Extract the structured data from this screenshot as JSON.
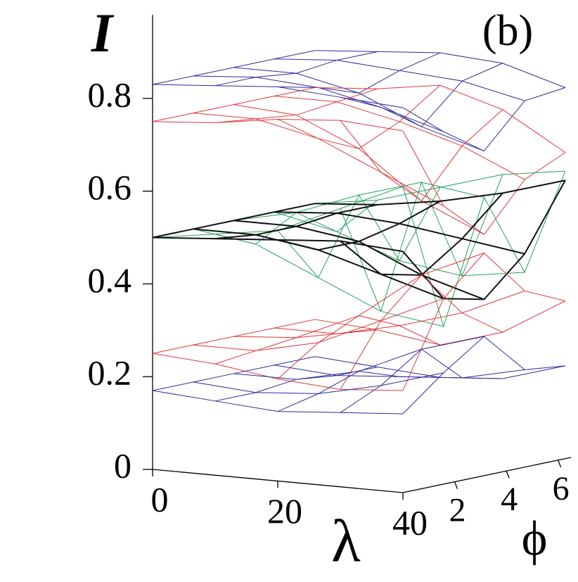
{
  "chart_data": {
    "type": "surface3d",
    "annotation": "(b)",
    "zlabel": "I",
    "xlabel": "λ",
    "ylabel": "ϕ",
    "x": [
      0,
      10,
      20,
      30,
      40
    ],
    "y": [
      0,
      1.57,
      3.14,
      4.71,
      6.28
    ],
    "xlim": [
      0,
      40
    ],
    "ylim": [
      0,
      6.5
    ],
    "zlim": [
      0,
      0.98
    ],
    "xticks": [
      0,
      20,
      40
    ],
    "yticks": [
      2,
      4,
      6
    ],
    "zticks": [
      0,
      0.2,
      0.4,
      0.6,
      0.8
    ],
    "series": [
      {
        "color": "#2b2b9a",
        "z": [
          [
            0.83,
            0.84,
            0.85,
            0.84,
            0.83
          ],
          [
            0.83,
            0.84,
            0.83,
            0.8,
            0.76
          ],
          [
            0.83,
            0.83,
            0.8,
            0.74,
            0.7
          ],
          [
            0.83,
            0.84,
            0.83,
            0.82,
            0.79
          ],
          [
            0.83,
            0.84,
            0.85,
            0.84,
            0.8
          ]
        ]
      },
      {
        "color": "#e0363a",
        "z": [
          [
            0.75,
            0.76,
            0.78,
            0.79,
            0.78
          ],
          [
            0.75,
            0.75,
            0.72,
            0.66,
            0.6
          ],
          [
            0.75,
            0.74,
            0.68,
            0.58,
            0.52
          ],
          [
            0.75,
            0.75,
            0.72,
            0.68,
            0.62
          ],
          [
            0.75,
            0.76,
            0.78,
            0.74,
            0.66
          ]
        ]
      },
      {
        "color": "#22a05a",
        "z": [
          [
            0.5,
            0.52,
            0.54,
            0.6,
            0.66
          ],
          [
            0.5,
            0.48,
            0.42,
            0.36,
            0.34
          ],
          [
            0.5,
            0.53,
            0.58,
            0.62,
            0.6
          ],
          [
            0.5,
            0.47,
            0.42,
            0.4,
            0.42
          ],
          [
            0.5,
            0.52,
            0.56,
            0.6,
            0.62
          ]
        ]
      },
      {
        "color": "#111111",
        "z": [
          [
            0.5,
            0.51,
            0.52,
            0.53,
            0.52
          ],
          [
            0.5,
            0.5,
            0.48,
            0.44,
            0.4
          ],
          [
            0.5,
            0.5,
            0.48,
            0.42,
            0.38
          ],
          [
            0.5,
            0.51,
            0.5,
            0.48,
            0.46
          ],
          [
            0.5,
            0.51,
            0.53,
            0.56,
            0.6
          ]
        ]
      },
      {
        "color": "#e0363a",
        "z": [
          [
            0.25,
            0.24,
            0.22,
            0.21,
            0.22
          ],
          [
            0.25,
            0.25,
            0.28,
            0.34,
            0.4
          ],
          [
            0.25,
            0.26,
            0.32,
            0.42,
            0.48
          ],
          [
            0.25,
            0.25,
            0.28,
            0.32,
            0.38
          ],
          [
            0.25,
            0.24,
            0.22,
            0.26,
            0.34
          ]
        ]
      },
      {
        "color": "#2b2b9a",
        "z": [
          [
            0.17,
            0.16,
            0.15,
            0.16,
            0.17
          ],
          [
            0.17,
            0.16,
            0.17,
            0.2,
            0.24
          ],
          [
            0.17,
            0.17,
            0.2,
            0.26,
            0.3
          ],
          [
            0.17,
            0.16,
            0.17,
            0.18,
            0.21
          ],
          [
            0.17,
            0.16,
            0.15,
            0.16,
            0.2
          ]
        ]
      }
    ]
  }
}
